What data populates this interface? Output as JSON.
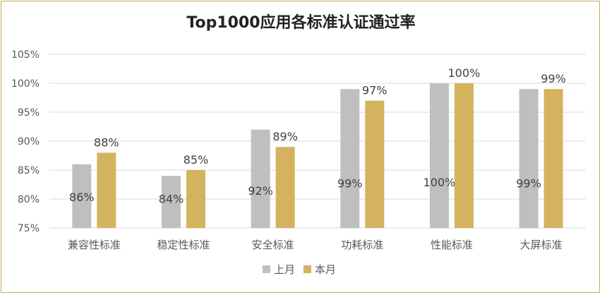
{
  "chart_data": {
    "type": "bar",
    "title": "Top1000应用各标准认证通过率",
    "categories": [
      "兼容性标准",
      "稳定性标准",
      "安全标准",
      "功耗标准",
      "性能标准",
      "大屏标准"
    ],
    "series": [
      {
        "name": "上月",
        "values": [
          86,
          84,
          92,
          99,
          100,
          99
        ],
        "labels": [
          "86%",
          "84%",
          "92%",
          "99%",
          "100%",
          "99%"
        ]
      },
      {
        "name": "本月",
        "values": [
          88,
          85,
          89,
          97,
          100,
          99
        ],
        "labels": [
          "88%",
          "85%",
          "89%",
          "97%",
          "100%",
          "99%"
        ]
      }
    ],
    "ylim": [
      75,
      105
    ],
    "yticks": [
      "75%",
      "80%",
      "85%",
      "90%",
      "95%",
      "100%",
      "105%"
    ],
    "grid": true,
    "legend": "bottom",
    "colors": {
      "上月": "#bfbfbf",
      "本月": "#d4b35f",
      "grid": "#d9d9d9",
      "frame": "#c9a960"
    }
  }
}
